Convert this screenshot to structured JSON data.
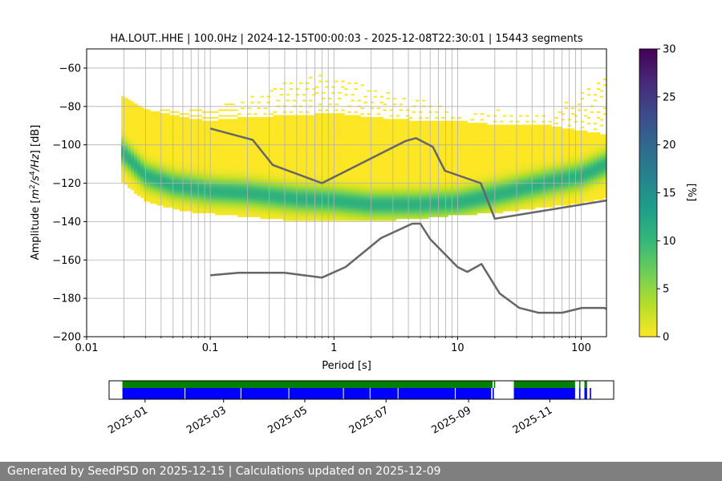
{
  "chart_data": [
    {
      "type": "heatmap",
      "title": "HA.LOUT..HHE | 100.0Hz | 2024-12-15T00:00:03 - 2025-12-08T22:30:01 | 15443 segments",
      "xlabel": "Period [s]",
      "ylabel_parts": [
        "Amplitude [",
        "m",
        "2",
        "/",
        "s",
        "4",
        "/",
        "Hz",
        "] [dB]"
      ],
      "x_scale": "log",
      "xlim": [
        0.01,
        160
      ],
      "ylim": [
        -200,
        -50
      ],
      "x_ticks": [
        0.01,
        0.1,
        1,
        10,
        100
      ],
      "x_tick_labels": [
        "0.01",
        "0.1",
        "1",
        "10",
        "100"
      ],
      "y_ticks": [
        -60,
        -80,
        -100,
        -120,
        -140,
        -160,
        -180,
        -200
      ],
      "y_tick_labels": [
        "−60",
        "−80",
        "−100",
        "−120",
        "−140",
        "−160",
        "−180",
        "−200"
      ],
      "grid": true,
      "density": {
        "period_range": [
          0.019,
          160
        ],
        "mode_curve": [
          [
            0.019,
            -103
          ],
          [
            0.03,
            -116
          ],
          [
            0.05,
            -121
          ],
          [
            0.1,
            -124
          ],
          [
            0.2,
            -125
          ],
          [
            0.5,
            -128
          ],
          [
            1,
            -129
          ],
          [
            2,
            -131
          ],
          [
            5,
            -131
          ],
          [
            10,
            -130
          ],
          [
            20,
            -126
          ],
          [
            50,
            -120
          ],
          [
            100,
            -116
          ],
          [
            160,
            -110
          ]
        ],
        "lower_edge": [
          [
            0.019,
            -118
          ],
          [
            0.03,
            -129
          ],
          [
            0.06,
            -134
          ],
          [
            0.2,
            -137
          ],
          [
            0.5,
            -139
          ],
          [
            1,
            -139
          ],
          [
            2,
            -139
          ],
          [
            5,
            -138
          ],
          [
            10,
            -136
          ],
          [
            20,
            -135
          ],
          [
            50,
            -132
          ],
          [
            100,
            -130
          ],
          [
            160,
            -127
          ]
        ],
        "upper_edge": [
          [
            0.019,
            -75
          ],
          [
            0.03,
            -82
          ],
          [
            0.06,
            -86
          ],
          [
            0.1,
            -88
          ],
          [
            0.2,
            -86
          ],
          [
            0.5,
            -85
          ],
          [
            1,
            -84
          ],
          [
            2,
            -86
          ],
          [
            5,
            -88
          ],
          [
            10,
            -88
          ],
          [
            20,
            -90
          ],
          [
            50,
            -90
          ],
          [
            100,
            -93
          ],
          [
            160,
            -95
          ]
        ],
        "sparse_upper": [
          [
            0.1,
            -82
          ],
          [
            0.2,
            -76
          ],
          [
            0.5,
            -66
          ],
          [
            0.8,
            -64
          ],
          [
            1.5,
            -68
          ],
          [
            3,
            -73
          ],
          [
            6,
            -78
          ],
          [
            10,
            -85
          ],
          [
            20,
            -82
          ],
          [
            40,
            -86
          ],
          [
            70,
            -80
          ],
          [
            100,
            -72
          ],
          [
            160,
            -65
          ]
        ]
      },
      "noise_models": [
        {
          "name_role": "high-noise-model",
          "points": [
            [
              0.1,
              -91.5
            ],
            [
              0.22,
              -97.4
            ],
            [
              0.32,
              -110.5
            ],
            [
              0.8,
              -120
            ],
            [
              3.8,
              -98
            ],
            [
              4.6,
              -96.5
            ],
            [
              6.3,
              -101
            ],
            [
              7.9,
              -113.5
            ],
            [
              15.4,
              -120
            ],
            [
              20,
              -138.5
            ],
            [
              160,
              -129
            ]
          ]
        },
        {
          "name_role": "low-noise-model",
          "points": [
            [
              0.1,
              -168
            ],
            [
              0.17,
              -166.7
            ],
            [
              0.4,
              -166.7
            ],
            [
              0.8,
              -169.2
            ],
            [
              1.24,
              -163.7
            ],
            [
              2.4,
              -148.6
            ],
            [
              4.3,
              -141.1
            ],
            [
              5.0,
              -141.1
            ],
            [
              6.0,
              -149.1
            ],
            [
              10,
              -163.7
            ],
            [
              12,
              -166.2
            ],
            [
              15.6,
              -162.1
            ],
            [
              21.9,
              -177.5
            ],
            [
              31.6,
              -185
            ],
            [
              45,
              -187.5
            ],
            [
              70,
              -187.5
            ],
            [
              101,
              -185
            ],
            [
              154,
              -185
            ],
            [
              160,
              -185.5
            ]
          ]
        }
      ]
    },
    {
      "type": "colorbar",
      "label": "[%]",
      "range": [
        0,
        30
      ],
      "ticks": [
        0,
        5,
        10,
        15,
        20,
        25,
        30
      ],
      "colors": [
        "#fde725",
        "#b5de2b",
        "#6ece58",
        "#35b779",
        "#1f9e89",
        "#26828e",
        "#31688e",
        "#3e4989",
        "#482878",
        "#440154"
      ]
    },
    {
      "type": "timeline",
      "x_tick_labels": [
        "2025-01",
        "2025-03",
        "2025-05",
        "2025-07",
        "2025-09",
        "2025-11"
      ],
      "x_ticks": [
        "2025-01-01",
        "2025-03-01",
        "2025-05-01",
        "2025-07-01",
        "2025-09-01",
        "2025-11-01"
      ],
      "xlim": [
        "2024-12-05",
        "2025-12-19"
      ],
      "colors": {
        "processed": "#008000",
        "available": "#0000ff"
      },
      "processed_spans": [
        [
          "2024-12-15",
          "2025-09-19"
        ],
        [
          "2025-09-20",
          "2025-09-21"
        ],
        [
          "2025-10-05",
          "2025-11-20"
        ],
        [
          "2025-11-23",
          "2025-11-24"
        ],
        [
          "2025-11-27",
          "2025-11-29"
        ]
      ],
      "available_spans": [
        [
          "2024-12-15",
          "2025-09-18"
        ],
        [
          "2025-09-19",
          "2025-09-20"
        ],
        [
          "2025-10-05",
          "2025-11-20"
        ],
        [
          "2025-11-23",
          "2025-11-24"
        ],
        [
          "2025-11-27",
          "2025-11-29"
        ],
        [
          "2025-12-01",
          "2025-12-02"
        ]
      ],
      "available_gaps": [
        "2025-01-31",
        "2025-03-14",
        "2025-04-19",
        "2025-05-30",
        "2025-06-19",
        "2025-07-10",
        "2025-08-22"
      ]
    }
  ],
  "footer": {
    "text": "Generated by SeedPSD on 2025-12-15 | Calculations updated on 2025-12-09"
  }
}
